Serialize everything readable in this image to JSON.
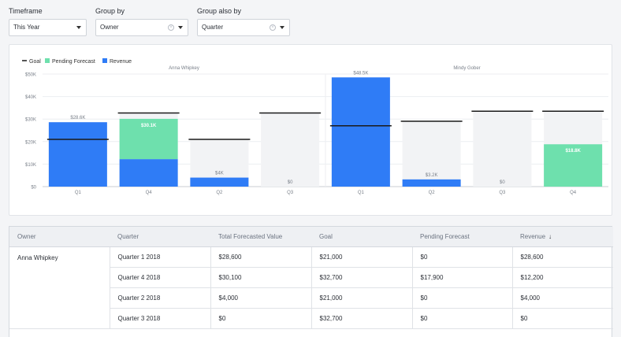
{
  "filters": {
    "timeframe": {
      "label": "Timeframe",
      "value": "This Year"
    },
    "group_by": {
      "label": "Group by",
      "value": "Owner"
    },
    "group_also_by": {
      "label": "Group also by",
      "value": "Quarter"
    }
  },
  "chart_data": {
    "type": "bar",
    "stacked": true,
    "legend": [
      "Goal",
      "Pending Forecast",
      "Revenue"
    ],
    "legend_placement": "top-left",
    "colors": {
      "revenue": "#2f7cf6",
      "pending": "#6ee0ad",
      "goal": "#1a1a1a",
      "background_bar": "#f2f3f5"
    },
    "ylim": [
      0,
      50000
    ],
    "yticks": [
      "$0",
      "$10K",
      "$20K",
      "$30K",
      "$40K",
      "$50K"
    ],
    "ytick_values": [
      0,
      10000,
      20000,
      30000,
      40000,
      50000
    ],
    "groups": [
      {
        "name": "Anna Whipkey",
        "bars": [
          {
            "category": "Q1",
            "revenue": 28600,
            "pending": 0,
            "goal": 21000,
            "label": "$28.6K"
          },
          {
            "category": "Q4",
            "revenue": 12200,
            "pending": 17900,
            "goal": 32700,
            "label": "$30.1K"
          },
          {
            "category": "Q2",
            "revenue": 4000,
            "pending": 0,
            "goal": 21000,
            "label": "$4K"
          },
          {
            "category": "Q3",
            "revenue": 0,
            "pending": 0,
            "goal": 32700,
            "label": "$0"
          }
        ]
      },
      {
        "name": "Mindy Gober",
        "bars": [
          {
            "category": "Q1",
            "revenue": 48500,
            "pending": 0,
            "goal": 27000,
            "label": "$48.5K"
          },
          {
            "category": "Q2",
            "revenue": 3200,
            "pending": 0,
            "goal": 29000,
            "label": "$3.2K"
          },
          {
            "category": "Q3",
            "revenue": 0,
            "pending": 0,
            "goal": 33500,
            "label": "$0"
          },
          {
            "category": "Q4",
            "revenue": 0,
            "pending": 18800,
            "goal": 33500,
            "label": "$18.8K"
          }
        ]
      }
    ]
  },
  "table": {
    "headers": [
      "Owner",
      "Quarter",
      "Total Forecasted Value",
      "Goal",
      "Pending Forecast",
      "Revenue"
    ],
    "sort_indicator": "↓",
    "owner": "Anna Whipkey",
    "rows": [
      [
        "Quarter 1 2018",
        "$28,600",
        "$21,000",
        "$0",
        "$28,600"
      ],
      [
        "Quarter 4 2018",
        "$30,100",
        "$32,700",
        "$17,900",
        "$12,200"
      ],
      [
        "Quarter 2 2018",
        "$4,000",
        "$21,000",
        "$0",
        "$4,000"
      ],
      [
        "Quarter 3 2018",
        "$0",
        "$32,700",
        "$0",
        "$0"
      ]
    ]
  }
}
